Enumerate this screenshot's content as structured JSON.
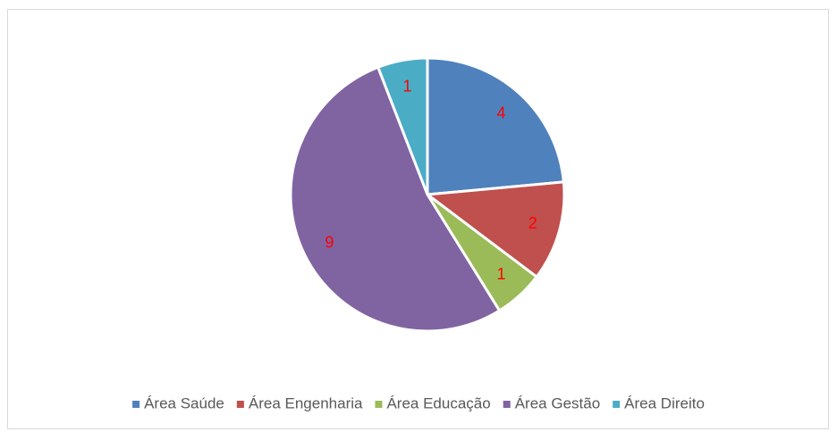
{
  "chart_data": {
    "type": "pie",
    "categories": [
      "Área Saúde",
      "Área Engenharia",
      "Área Educação",
      "Área Gestão",
      "Área Direito"
    ],
    "values": [
      4,
      2,
      1,
      9,
      1
    ],
    "colors": [
      "#4f81bd",
      "#c0504d",
      "#9bbb59",
      "#8064a2",
      "#4bacc6"
    ],
    "label_color": "#ff0000",
    "legend": "bottom"
  }
}
